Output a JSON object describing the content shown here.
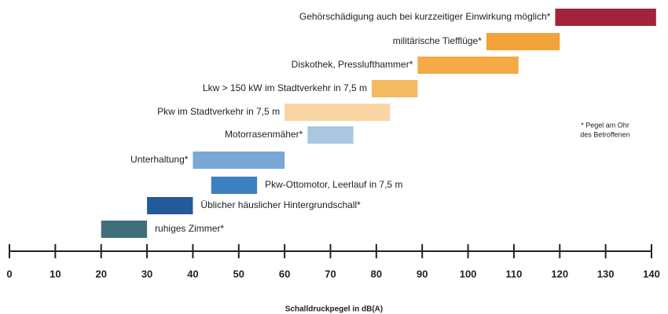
{
  "chart_data": {
    "type": "range_bar",
    "categories": [
      "Gehörschädigung auch bei kurzzeitiger Einwirkung möglich*",
      "militärische Tiefflüge*",
      "Diskothek, Presslufthammer*",
      "Lkw > 150 kW im Stadtverkehr in 7,5 m",
      "Pkw im Stadtverkehr in 7,5 m",
      "Motorrasenmäher*",
      "Unterhaltung*",
      "Pkw-Ottomotor, Leerlauf in 7,5 m",
      "Üblicher häuslicher Hintergrundschall*",
      "ruhiges Zimmer*"
    ],
    "starts": [
      119,
      104,
      89,
      79,
      60,
      65,
      40,
      44,
      30,
      20
    ],
    "ends": [
      141,
      120,
      111,
      89,
      83,
      75,
      60,
      54,
      40,
      30
    ],
    "colors": [
      "#a3243a",
      "#f2a33a",
      "#f4ab45",
      "#f5b962",
      "#f8d5a3",
      "#a9c6e2",
      "#79a8d6",
      "#3d80c2",
      "#24599c",
      "#3f6f7b"
    ],
    "xlim": [
      0,
      140
    ],
    "xticks": [
      0,
      10,
      20,
      30,
      40,
      50,
      60,
      70,
      80,
      90,
      100,
      110,
      120,
      130,
      140
    ],
    "xlabel": "Schalldruckpegel in dB(A)",
    "annotation": [
      "* Pegel am Ohr",
      "des Betroffenen"
    ]
  }
}
